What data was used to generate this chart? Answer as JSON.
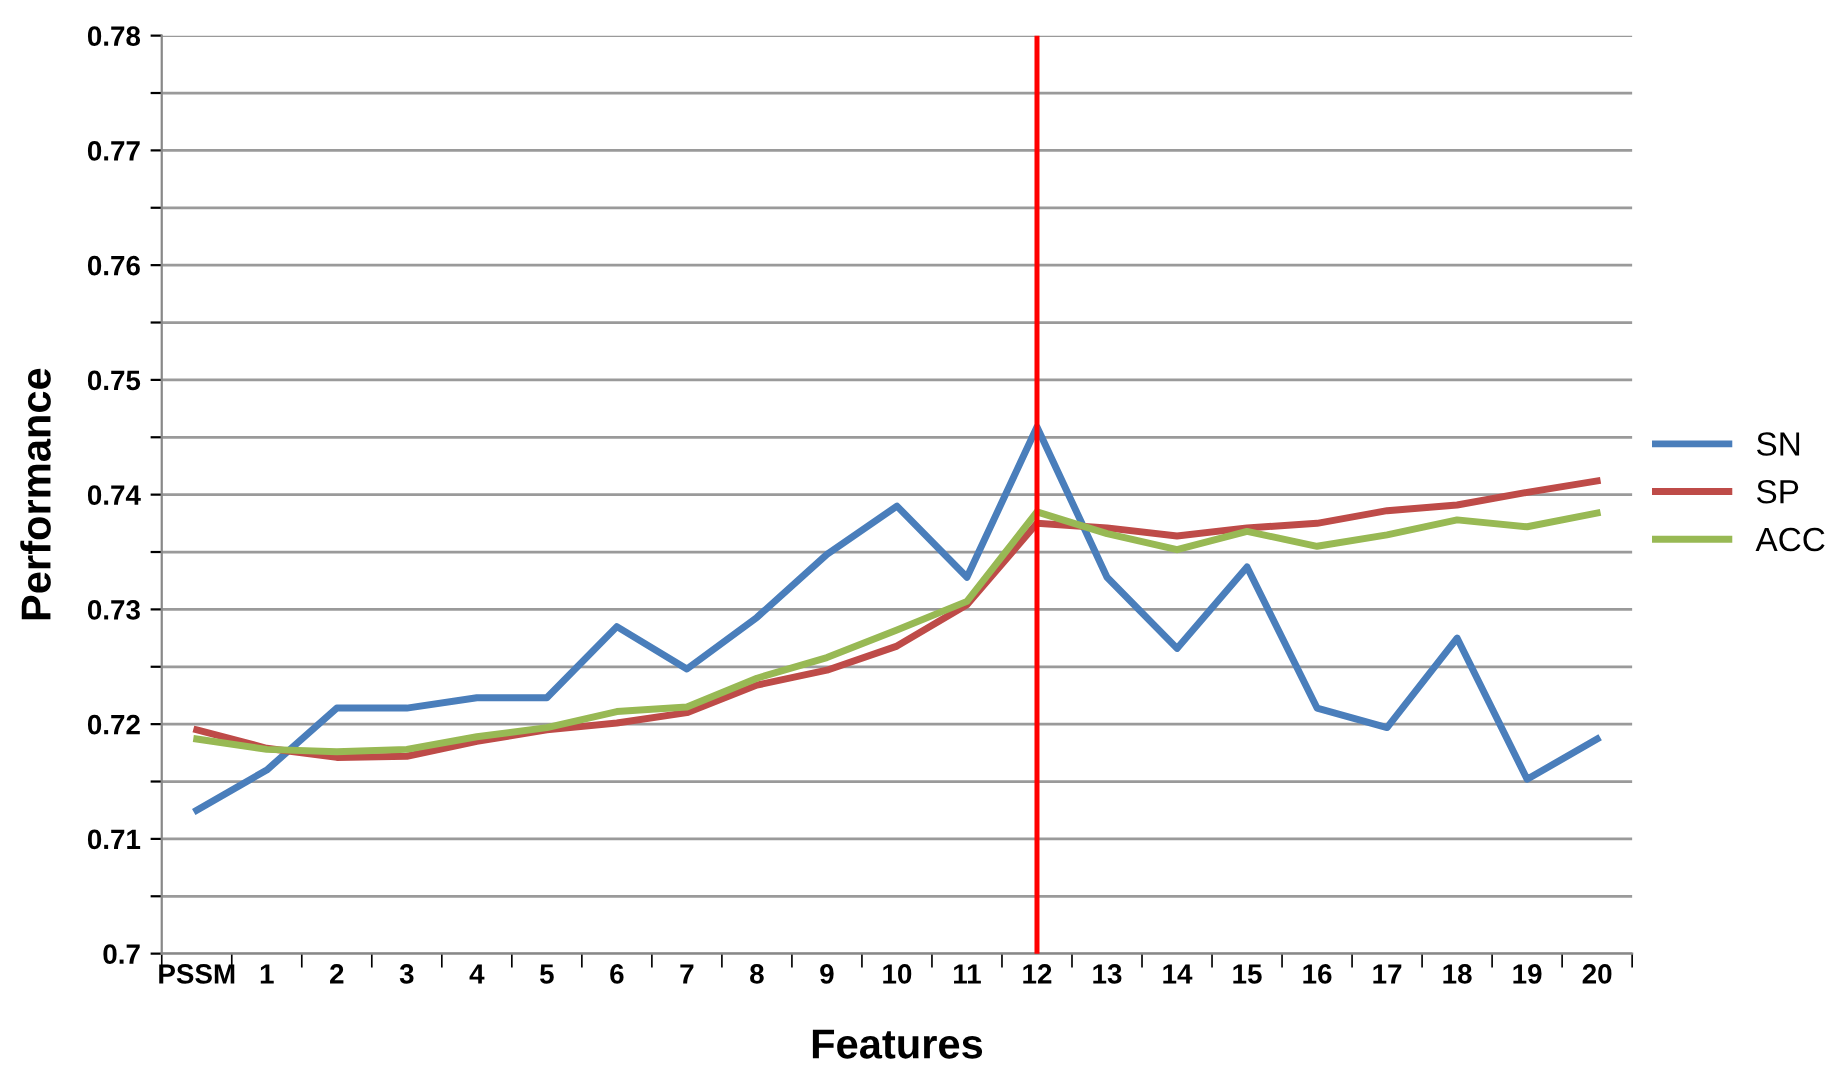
{
  "chart_data": {
    "type": "line",
    "xlabel": "Features",
    "ylabel": "Performance",
    "categories": [
      "PSSM",
      "1",
      "2",
      "3",
      "4",
      "5",
      "6",
      "7",
      "8",
      "9",
      "10",
      "11",
      "12",
      "13",
      "14",
      "15",
      "16",
      "17",
      "18",
      "19",
      "20"
    ],
    "series": [
      {
        "name": "SN",
        "color": "#4a7ebb",
        "values": [
          0.7125,
          0.716,
          0.7214,
          0.7214,
          0.7223,
          0.7223,
          0.7285,
          0.7248,
          0.7293,
          0.7348,
          0.739,
          0.7328,
          0.7459,
          0.7328,
          0.7266,
          0.7337,
          0.7214,
          0.7197,
          0.7275,
          0.7152,
          0.7187
        ]
      },
      {
        "name": "SP",
        "color": "#be4b48",
        "values": [
          0.7195,
          0.7179,
          0.7171,
          0.7172,
          0.7185,
          0.7195,
          0.7201,
          0.721,
          0.7234,
          0.7247,
          0.7268,
          0.7304,
          0.7375,
          0.7371,
          0.7364,
          0.7371,
          0.7375,
          0.7386,
          0.7391,
          0.7402,
          0.7412
        ]
      },
      {
        "name": "ACC",
        "color": "#98b954",
        "values": [
          0.7187,
          0.7178,
          0.7176,
          0.7178,
          0.7189,
          0.7197,
          0.7211,
          0.7215,
          0.724,
          0.7258,
          0.7282,
          0.7307,
          0.7385,
          0.7366,
          0.7352,
          0.7368,
          0.7355,
          0.7365,
          0.7378,
          0.7372,
          0.7384
        ]
      }
    ],
    "ylim": [
      0.7,
      0.78
    ],
    "yticks": [
      0.7,
      {
        "value": 0.705,
        "label": null
      },
      0.71,
      {
        "value": 0.715,
        "label": null
      },
      0.72,
      {
        "value": 0.725,
        "label": null
      },
      0.73,
      {
        "value": 0.735,
        "label": null
      },
      0.74,
      {
        "value": 0.745,
        "label": null
      },
      0.75,
      {
        "value": 0.755,
        "label": null
      },
      0.76,
      {
        "value": 0.765,
        "label": null
      },
      0.77,
      {
        "value": 0.775,
        "label": null
      },
      0.78
    ],
    "ref_lines": [
      {
        "axis": "x",
        "value": "12",
        "color": "#ff0000"
      }
    ],
    "grid": "y",
    "legend": "right",
    "marker": "none",
    "line_style": "solid"
  }
}
